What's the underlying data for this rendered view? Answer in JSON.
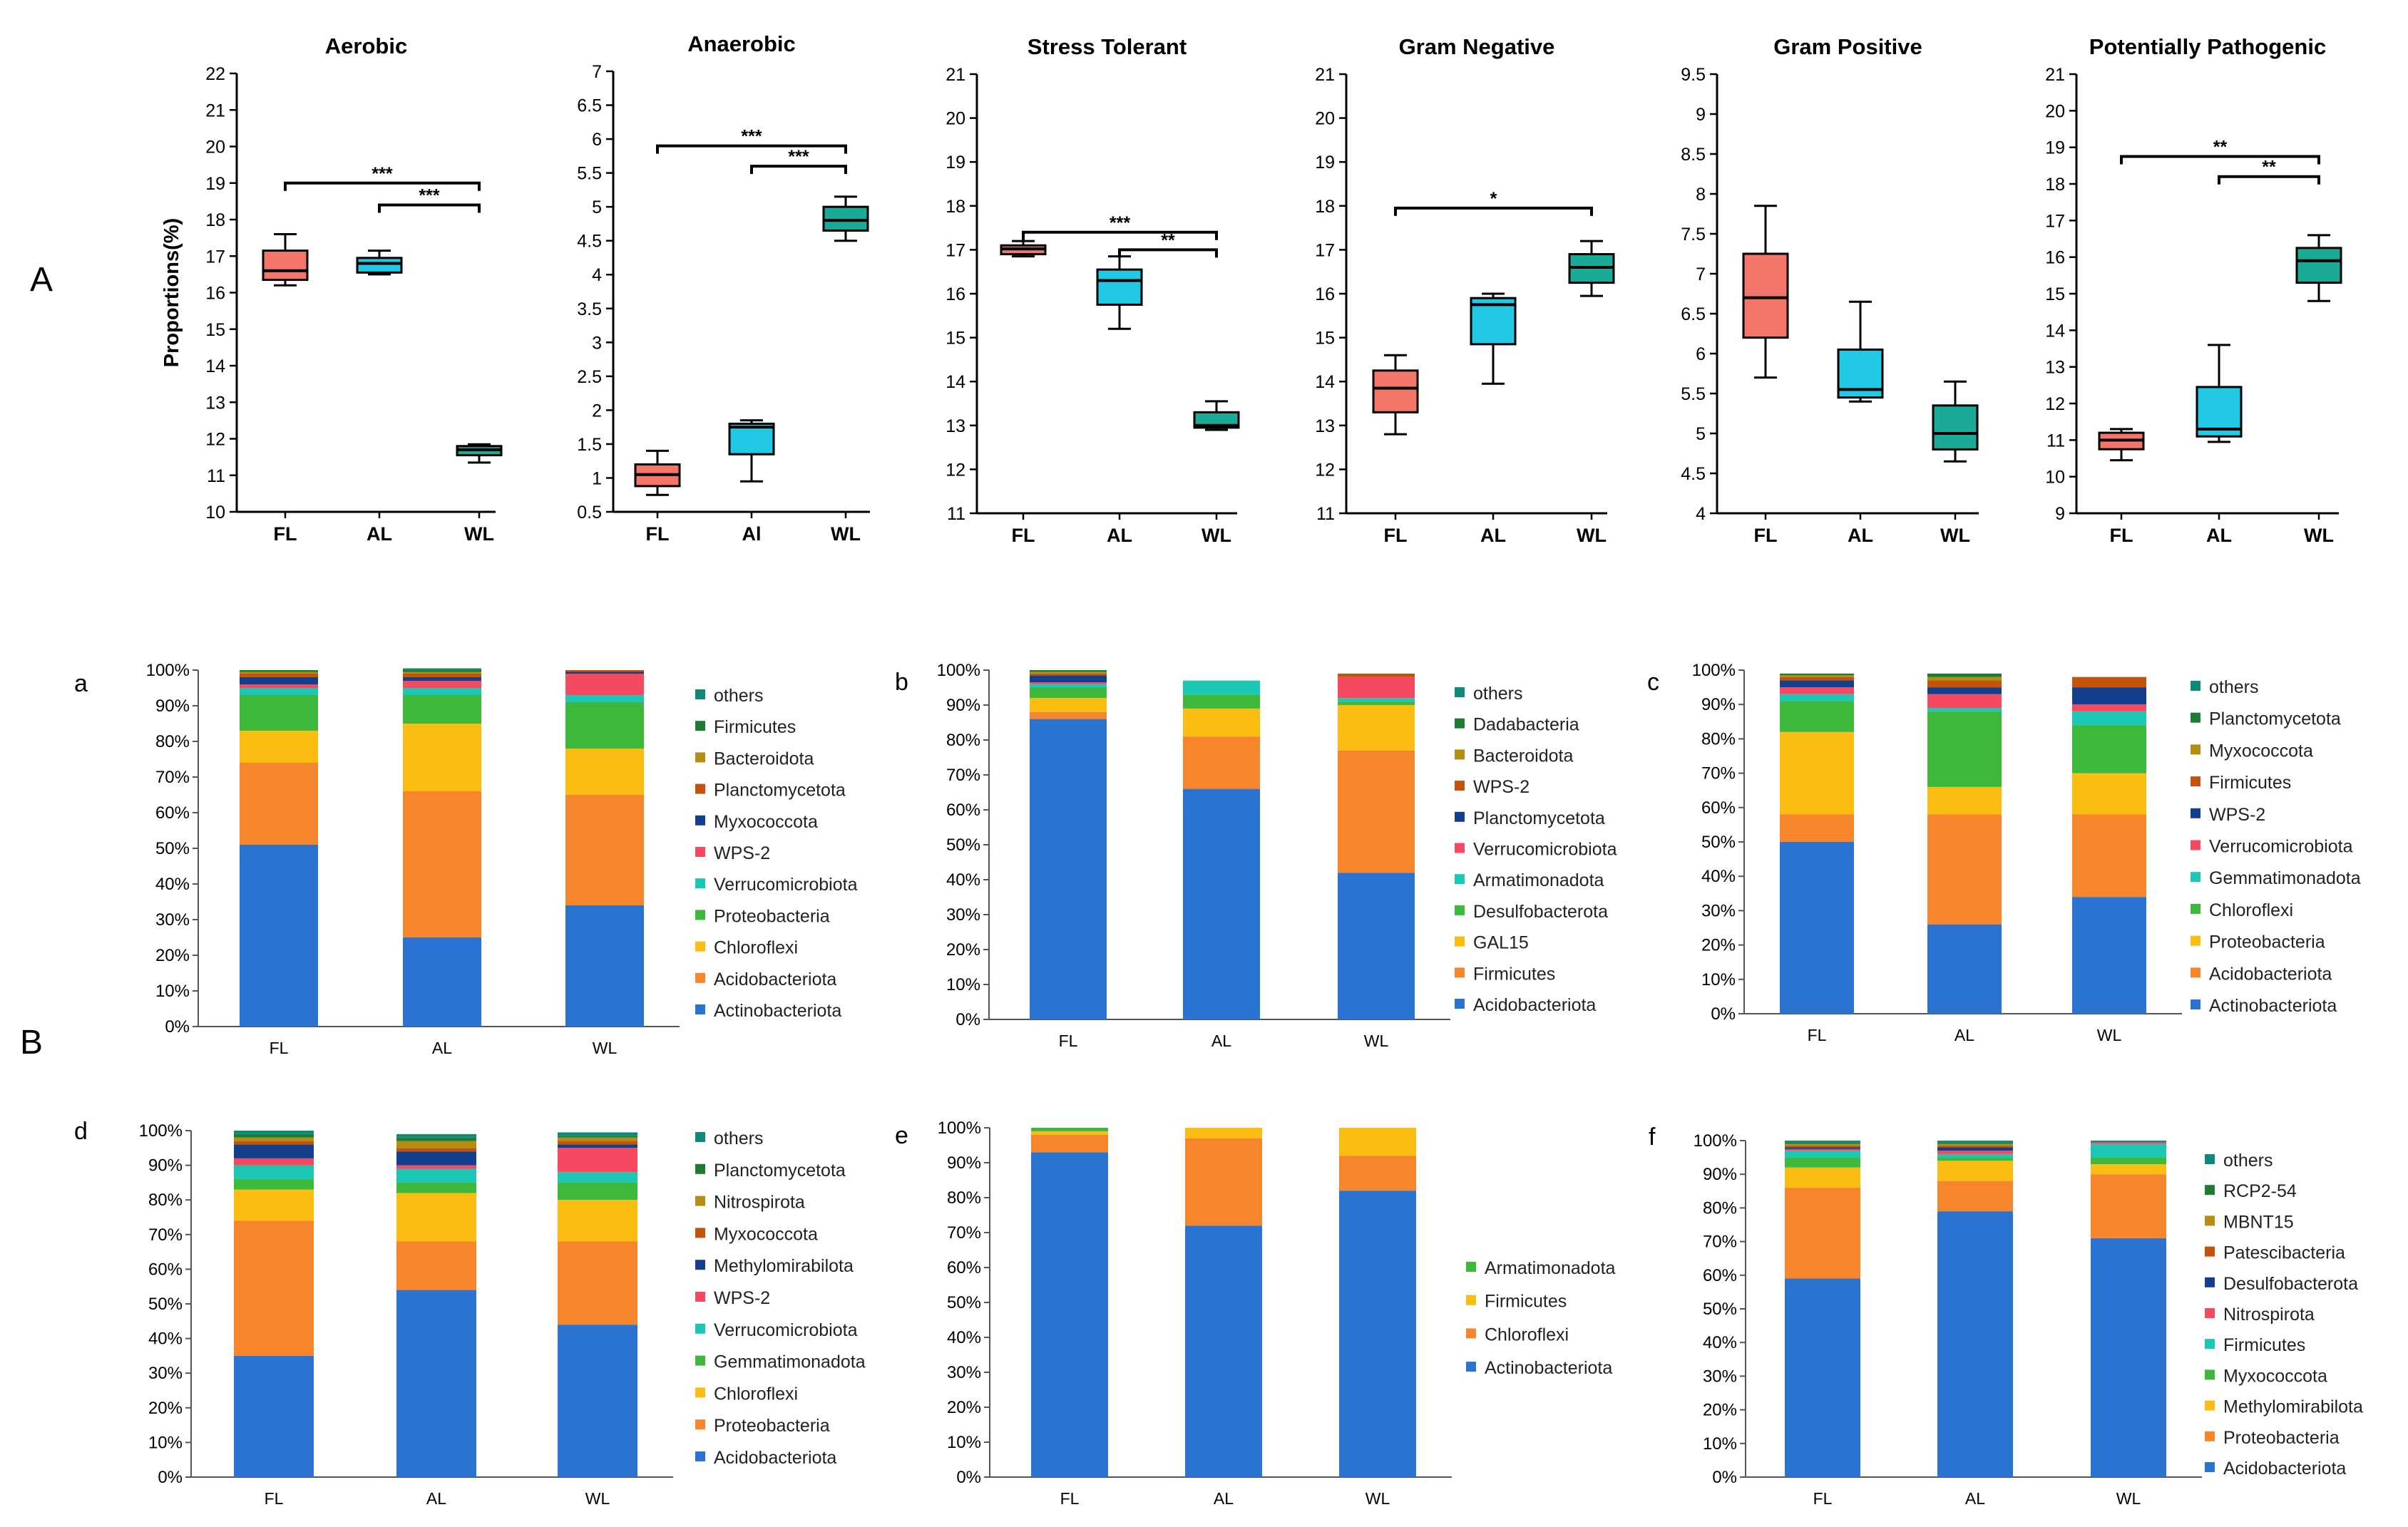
{
  "panel_labels": {
    "A": "A",
    "B": "B"
  },
  "chart_data": [
    {
      "type": "box",
      "panel": "A",
      "title": "Aerobic",
      "ylabel": "Proportions(%)",
      "ylim": [
        10,
        22
      ],
      "yticks": [
        10,
        11,
        12,
        13,
        14,
        15,
        16,
        17,
        18,
        19,
        20,
        21,
        22
      ],
      "categories": [
        "FL",
        "AL",
        "WL"
      ],
      "colors": [
        "#f4766b",
        "#22c9e4",
        "#1aaa98"
      ],
      "boxes": [
        {
          "min": 16.2,
          "q1": 16.35,
          "median": 16.6,
          "q3": 17.15,
          "max": 17.6
        },
        {
          "min": 16.5,
          "q1": 16.55,
          "median": 16.8,
          "q3": 16.95,
          "max": 17.15
        },
        {
          "min": 11.35,
          "q1": 11.55,
          "median": 11.7,
          "q3": 11.8,
          "max": 11.85
        }
      ],
      "sig": [
        {
          "from": 0,
          "to": 2,
          "y": 19,
          "label": "***"
        },
        {
          "from": 1,
          "to": 2,
          "y": 18.4,
          "label": "***"
        }
      ]
    },
    {
      "type": "box",
      "panel": "A",
      "title": "Anaerobic",
      "ylim": [
        0.5,
        7
      ],
      "yticks": [
        "0.5",
        "1",
        "1.5",
        "2",
        "2.5",
        "3",
        "3.5",
        "4",
        "4.5",
        "5",
        "5.5",
        "6",
        "6.5",
        "7"
      ],
      "categories": [
        "FL",
        "Al",
        "WL"
      ],
      "colors": [
        "#f4766b",
        "#22c9e4",
        "#1aaa98"
      ],
      "boxes": [
        {
          "min": 0.75,
          "q1": 0.88,
          "median": 1.05,
          "q3": 1.2,
          "max": 1.4
        },
        {
          "min": 0.95,
          "q1": 1.35,
          "median": 1.75,
          "q3": 1.8,
          "max": 1.85
        },
        {
          "min": 4.5,
          "q1": 4.65,
          "median": 4.8,
          "q3": 5,
          "max": 5.15
        }
      ],
      "sig": [
        {
          "from": 0,
          "to": 2,
          "y": 5.9,
          "label": "***"
        },
        {
          "from": 1,
          "to": 2,
          "y": 5.6,
          "label": "***"
        }
      ]
    },
    {
      "type": "box",
      "panel": "A",
      "title": "Stress Tolerant",
      "ylim": [
        11,
        21
      ],
      "yticks": [
        11,
        12,
        13,
        14,
        15,
        16,
        17,
        18,
        19,
        20,
        21
      ],
      "categories": [
        "FL",
        "AL",
        "WL"
      ],
      "colors": [
        "#f4766b",
        "#22c9e4",
        "#1aaa98"
      ],
      "boxes": [
        {
          "min": 16.85,
          "q1": 16.9,
          "median": 17.02,
          "q3": 17.1,
          "max": 17.2
        },
        {
          "min": 15.2,
          "q1": 15.75,
          "median": 16.3,
          "q3": 16.55,
          "max": 16.85
        },
        {
          "min": 12.9,
          "q1": 12.95,
          "median": 13,
          "q3": 13.3,
          "max": 13.55
        }
      ],
      "sig": [
        {
          "from": 0,
          "to": 2,
          "y": 17.4,
          "label": "***"
        },
        {
          "from": 1,
          "to": 2,
          "y": 17,
          "label": "**"
        }
      ]
    },
    {
      "type": "box",
      "panel": "A",
      "title": "Gram Negative",
      "ylim": [
        11,
        21
      ],
      "yticks": [
        11,
        12,
        13,
        14,
        15,
        16,
        17,
        18,
        19,
        20,
        21
      ],
      "categories": [
        "FL",
        "AL",
        "WL"
      ],
      "colors": [
        "#f4766b",
        "#22c9e4",
        "#1aaa98"
      ],
      "boxes": [
        {
          "min": 12.8,
          "q1": 13.3,
          "median": 13.85,
          "q3": 14.25,
          "max": 14.6
        },
        {
          "min": 13.95,
          "q1": 14.85,
          "median": 15.75,
          "q3": 15.9,
          "max": 16
        },
        {
          "min": 15.95,
          "q1": 16.25,
          "median": 16.6,
          "q3": 16.9,
          "max": 17.2
        }
      ],
      "sig": [
        {
          "from": 0,
          "to": 2,
          "y": 17.95,
          "label": "*"
        }
      ]
    },
    {
      "type": "box",
      "panel": "A",
      "title": "Gram Positive",
      "ylim": [
        4,
        9.5
      ],
      "yticks": [
        "4",
        "4.5",
        "5",
        "5.5",
        "6",
        "6.5",
        "7",
        "7.5",
        "8",
        "8.5",
        "9",
        "9.5"
      ],
      "categories": [
        "FL",
        "AL",
        "WL"
      ],
      "colors": [
        "#f4766b",
        "#22c9e4",
        "#1aaa98"
      ],
      "boxes": [
        {
          "min": 5.7,
          "q1": 6.2,
          "median": 6.7,
          "q3": 7.25,
          "max": 7.85
        },
        {
          "min": 5.4,
          "q1": 5.45,
          "median": 5.55,
          "q3": 6.05,
          "max": 6.65
        },
        {
          "min": 4.65,
          "q1": 4.8,
          "median": 5,
          "q3": 5.35,
          "max": 5.65
        }
      ],
      "sig": []
    },
    {
      "type": "box",
      "panel": "A",
      "title": "Potentially Pathogenic",
      "ylim": [
        9,
        21
      ],
      "yticks": [
        9,
        10,
        11,
        12,
        13,
        14,
        15,
        16,
        17,
        18,
        19,
        20,
        21
      ],
      "categories": [
        "FL",
        "AL",
        "WL"
      ],
      "colors": [
        "#f4766b",
        "#22c9e4",
        "#1aaa98"
      ],
      "boxes": [
        {
          "min": 10.45,
          "q1": 10.75,
          "median": 11,
          "q3": 11.2,
          "max": 11.3
        },
        {
          "min": 10.95,
          "q1": 11.1,
          "median": 11.3,
          "q3": 12.45,
          "max": 13.6
        },
        {
          "min": 14.8,
          "q1": 15.3,
          "median": 15.9,
          "q3": 16.25,
          "max": 16.6
        }
      ],
      "sig": [
        {
          "from": 0,
          "to": 2,
          "y": 18.75,
          "label": "**"
        },
        {
          "from": 1,
          "to": 2,
          "y": 18.2,
          "label": "**"
        }
      ]
    },
    {
      "type": "stacked-bar",
      "panel": "a",
      "categories": [
        "FL",
        "AL",
        "WL"
      ],
      "ylim": [
        0,
        100
      ],
      "yticks": [
        "0%",
        "10%",
        "20%",
        "30%",
        "40%",
        "50%",
        "60%",
        "70%",
        "80%",
        "90%",
        "100%"
      ],
      "series": [
        {
          "name": "Actinobacteriota",
          "color": "#2a73d0",
          "values": [
            51,
            25,
            34
          ]
        },
        {
          "name": "Acidobacteriota",
          "color": "#f7852b",
          "values": [
            23,
            41,
            31
          ]
        },
        {
          "name": "Chloroflexi",
          "color": "#fbbd11",
          "values": [
            9,
            19,
            13
          ]
        },
        {
          "name": "Proteobacteria",
          "color": "#3eb83a",
          "values": [
            10,
            8,
            13
          ]
        },
        {
          "name": "Verrucomicrobiota",
          "color": "#1cc7b5",
          "values": [
            2,
            2,
            2
          ]
        },
        {
          "name": "WPS-2",
          "color": "#f5495f",
          "values": [
            1,
            2,
            6
          ]
        },
        {
          "name": "Myxococcota",
          "color": "#143f8c",
          "values": [
            2,
            1,
            0.5
          ]
        },
        {
          "name": "Planctomycetota",
          "color": "#c4530e",
          "values": [
            1,
            1,
            0.5
          ]
        },
        {
          "name": "Bacteroidota",
          "color": "#b38e12",
          "values": [
            0.5,
            0.5,
            0
          ]
        },
        {
          "name": "Firmicutes",
          "color": "#1f7a32",
          "values": [
            0.5,
            0.5,
            0
          ]
        },
        {
          "name": "others",
          "color": "#0f8a7a",
          "values": [
            0,
            0.5,
            0
          ]
        }
      ]
    },
    {
      "type": "stacked-bar",
      "panel": "b",
      "categories": [
        "FL",
        "AL",
        "WL"
      ],
      "ylim": [
        0,
        100
      ],
      "yticks": [
        "0%",
        "10%",
        "20%",
        "30%",
        "40%",
        "50%",
        "60%",
        "70%",
        "80%",
        "90%",
        "100%"
      ],
      "series": [
        {
          "name": "Acidobacteriota",
          "color": "#2a73d0",
          "values": [
            86,
            66,
            42
          ]
        },
        {
          "name": "Firmicutes",
          "color": "#f7852b",
          "values": [
            2,
            15,
            35
          ]
        },
        {
          "name": "GAL15",
          "color": "#fbbd11",
          "values": [
            4,
            8,
            13
          ]
        },
        {
          "name": "Desulfobacterota",
          "color": "#3eb83a",
          "values": [
            3,
            4,
            1
          ]
        },
        {
          "name": "Armatimonadota",
          "color": "#1cc7b5",
          "values": [
            1,
            4,
            1
          ]
        },
        {
          "name": "Verrucomicrobiota",
          "color": "#f5495f",
          "values": [
            0.5,
            0,
            6
          ]
        },
        {
          "name": "Planctomycetota",
          "color": "#143f8c",
          "values": [
            2,
            0,
            0
          ]
        },
        {
          "name": "WPS-2",
          "color": "#c4530e",
          "values": [
            0.5,
            0,
            1
          ]
        },
        {
          "name": "Bacteroidota",
          "color": "#b38e12",
          "values": [
            0.5,
            0,
            0
          ]
        },
        {
          "name": "Dadabacteria",
          "color": "#1f7a32",
          "values": [
            0.5,
            0,
            0
          ]
        },
        {
          "name": "others",
          "color": "#0f8a7a",
          "values": [
            0,
            0,
            0
          ]
        }
      ]
    },
    {
      "type": "stacked-bar",
      "panel": "c",
      "categories": [
        "FL",
        "AL",
        "WL"
      ],
      "ylim": [
        0,
        100
      ],
      "yticks": [
        "0%",
        "10%",
        "20%",
        "30%",
        "40%",
        "50%",
        "60%",
        "70%",
        "80%",
        "90%",
        "100%"
      ],
      "series": [
        {
          "name": "Actinobacteriota",
          "color": "#2a73d0",
          "values": [
            50,
            26,
            34
          ]
        },
        {
          "name": "Acidobacteriota",
          "color": "#f7852b",
          "values": [
            8,
            32,
            24
          ]
        },
        {
          "name": "Proteobacteria",
          "color": "#fbbd11",
          "values": [
            24,
            8,
            12
          ]
        },
        {
          "name": "Chloroflexi",
          "color": "#3eb83a",
          "values": [
            9,
            22,
            14
          ]
        },
        {
          "name": "Gemmatimonadota",
          "color": "#1cc7b5",
          "values": [
            2,
            1,
            4
          ]
        },
        {
          "name": "Verrucomicrobiota",
          "color": "#f5495f",
          "values": [
            2,
            4,
            2
          ]
        },
        {
          "name": "WPS-2",
          "color": "#143f8c",
          "values": [
            2,
            2,
            5
          ]
        },
        {
          "name": "Firmicutes",
          "color": "#c4530e",
          "values": [
            1,
            2,
            3
          ]
        },
        {
          "name": "Myxococcota",
          "color": "#b38e12",
          "values": [
            0.5,
            1,
            0
          ]
        },
        {
          "name": "Planctomycetota",
          "color": "#1f7a32",
          "values": [
            0.5,
            1,
            0
          ]
        },
        {
          "name": "others",
          "color": "#0f8a7a",
          "values": [
            0,
            0,
            0
          ]
        }
      ]
    },
    {
      "type": "stacked-bar",
      "panel": "d",
      "categories": [
        "FL",
        "AL",
        "WL"
      ],
      "ylim": [
        0,
        100
      ],
      "yticks": [
        "0%",
        "10%",
        "20%",
        "30%",
        "40%",
        "50%",
        "60%",
        "70%",
        "80%",
        "90%",
        "100%"
      ],
      "series": [
        {
          "name": "Acidobacteriota",
          "color": "#2a73d0",
          "values": [
            35,
            54,
            44
          ]
        },
        {
          "name": "Proteobacteria",
          "color": "#f7852b",
          "values": [
            39,
            14,
            24
          ]
        },
        {
          "name": "Chloroflexi",
          "color": "#fbbd11",
          "values": [
            9,
            14,
            12
          ]
        },
        {
          "name": "Gemmatimonadota",
          "color": "#3eb83a",
          "values": [
            3,
            3,
            5
          ]
        },
        {
          "name": "Verrucomicrobiota",
          "color": "#1cc7b5",
          "values": [
            4,
            4,
            3
          ]
        },
        {
          "name": "WPS-2",
          "color": "#f5495f",
          "values": [
            2,
            1,
            7
          ]
        },
        {
          "name": "Methylomirabilota",
          "color": "#143f8c",
          "values": [
            4,
            4,
            1
          ]
        },
        {
          "name": "Myxococcota",
          "color": "#c4530e",
          "values": [
            1,
            1,
            1
          ]
        },
        {
          "name": "Nitrospirota",
          "color": "#b38e12",
          "values": [
            1,
            2,
            1
          ]
        },
        {
          "name": "Planctomycetota",
          "color": "#1f7a32",
          "values": [
            1,
            1,
            0.5
          ]
        },
        {
          "name": "others",
          "color": "#0f8a7a",
          "values": [
            1,
            1,
            1
          ]
        }
      ]
    },
    {
      "type": "stacked-bar",
      "panel": "e",
      "categories": [
        "FL",
        "AL",
        "WL"
      ],
      "ylim": [
        0,
        100
      ],
      "yticks": [
        "0%",
        "10%",
        "20%",
        "30%",
        "40%",
        "50%",
        "60%",
        "70%",
        "80%",
        "90%",
        "100%"
      ],
      "series": [
        {
          "name": "Actinobacteriota",
          "color": "#2a73d0",
          "values": [
            93,
            72,
            82
          ]
        },
        {
          "name": "Chloroflexi",
          "color": "#f7852b",
          "values": [
            5,
            25,
            10
          ]
        },
        {
          "name": "Firmicutes",
          "color": "#fbbd11",
          "values": [
            1,
            3,
            8
          ]
        },
        {
          "name": "Armatimonadota",
          "color": "#3eb83a",
          "values": [
            1,
            0,
            0
          ]
        }
      ]
    },
    {
      "type": "stacked-bar",
      "panel": "f",
      "categories": [
        "FL",
        "AL",
        "WL"
      ],
      "ylim": [
        0,
        100
      ],
      "yticks": [
        "0%",
        "10%",
        "20%",
        "30%",
        "40%",
        "50%",
        "60%",
        "70%",
        "80%",
        "90%",
        "100%"
      ],
      "series": [
        {
          "name": "Acidobacteriota",
          "color": "#2a73d0",
          "values": [
            59,
            79,
            71
          ]
        },
        {
          "name": "Proteobacteria",
          "color": "#f7852b",
          "values": [
            27,
            9,
            19
          ]
        },
        {
          "name": "Methylomirabilota",
          "color": "#fbbd11",
          "values": [
            6,
            6,
            3
          ]
        },
        {
          "name": "Myxococcota",
          "color": "#3eb83a",
          "values": [
            3,
            1,
            2
          ]
        },
        {
          "name": "Firmicutes",
          "color": "#1cc7b5",
          "values": [
            2,
            1,
            4
          ]
        },
        {
          "name": "Nitrospirota",
          "color": "#f5495f",
          "values": [
            0.5,
            1,
            0.5
          ]
        },
        {
          "name": "Desulfobacterota",
          "color": "#143f8c",
          "values": [
            0.5,
            1,
            0
          ]
        },
        {
          "name": "Patescibacteria",
          "color": "#c4530e",
          "values": [
            0.5,
            0.5,
            0
          ]
        },
        {
          "name": "MBNT15",
          "color": "#b38e12",
          "values": [
            0.5,
            0.5,
            0
          ]
        },
        {
          "name": "RCP2-54",
          "color": "#1f7a32",
          "values": [
            0.5,
            0.5,
            0
          ]
        },
        {
          "name": "others",
          "color": "#0f8a7a",
          "values": [
            0.5,
            0.5,
            0.5
          ]
        }
      ]
    }
  ]
}
